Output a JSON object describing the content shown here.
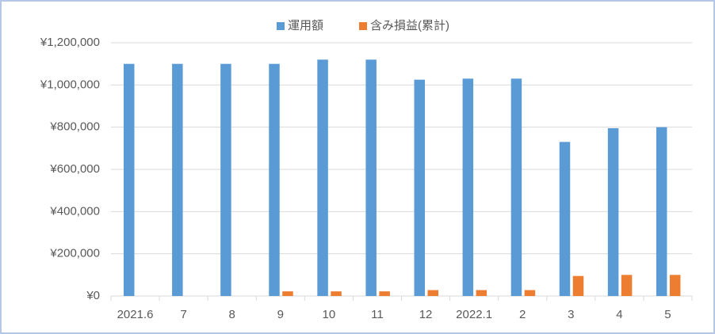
{
  "chart_data": {
    "type": "bar",
    "categories": [
      "2021.6",
      "7",
      "8",
      "9",
      "10",
      "11",
      "12",
      "2022.1",
      "2",
      "3",
      "4",
      "5"
    ],
    "series": [
      {
        "name": "運用額",
        "color": "#5b9bd5",
        "values": [
          1100000,
          1100000,
          1100000,
          1100000,
          1120000,
          1120000,
          1025000,
          1030000,
          1030000,
          730000,
          795000,
          800000
        ]
      },
      {
        "name": "含み損益(累計)",
        "color": "#ed7d31",
        "values": [
          0,
          0,
          0,
          22000,
          22000,
          22000,
          28000,
          28000,
          28000,
          95000,
          100000,
          100000
        ]
      }
    ],
    "ylim": [
      0,
      1200000
    ],
    "yticks": [
      {
        "value": 0,
        "label": "¥0"
      },
      {
        "value": 200000,
        "label": "¥200,000"
      },
      {
        "value": 400000,
        "label": "¥400,000"
      },
      {
        "value": 600000,
        "label": "¥600,000"
      },
      {
        "value": 800000,
        "label": "¥800,000"
      },
      {
        "value": 1000000,
        "label": "¥1,000,000"
      },
      {
        "value": 1200000,
        "label": "¥1,200,000"
      }
    ],
    "grid": true,
    "legend": "top"
  }
}
